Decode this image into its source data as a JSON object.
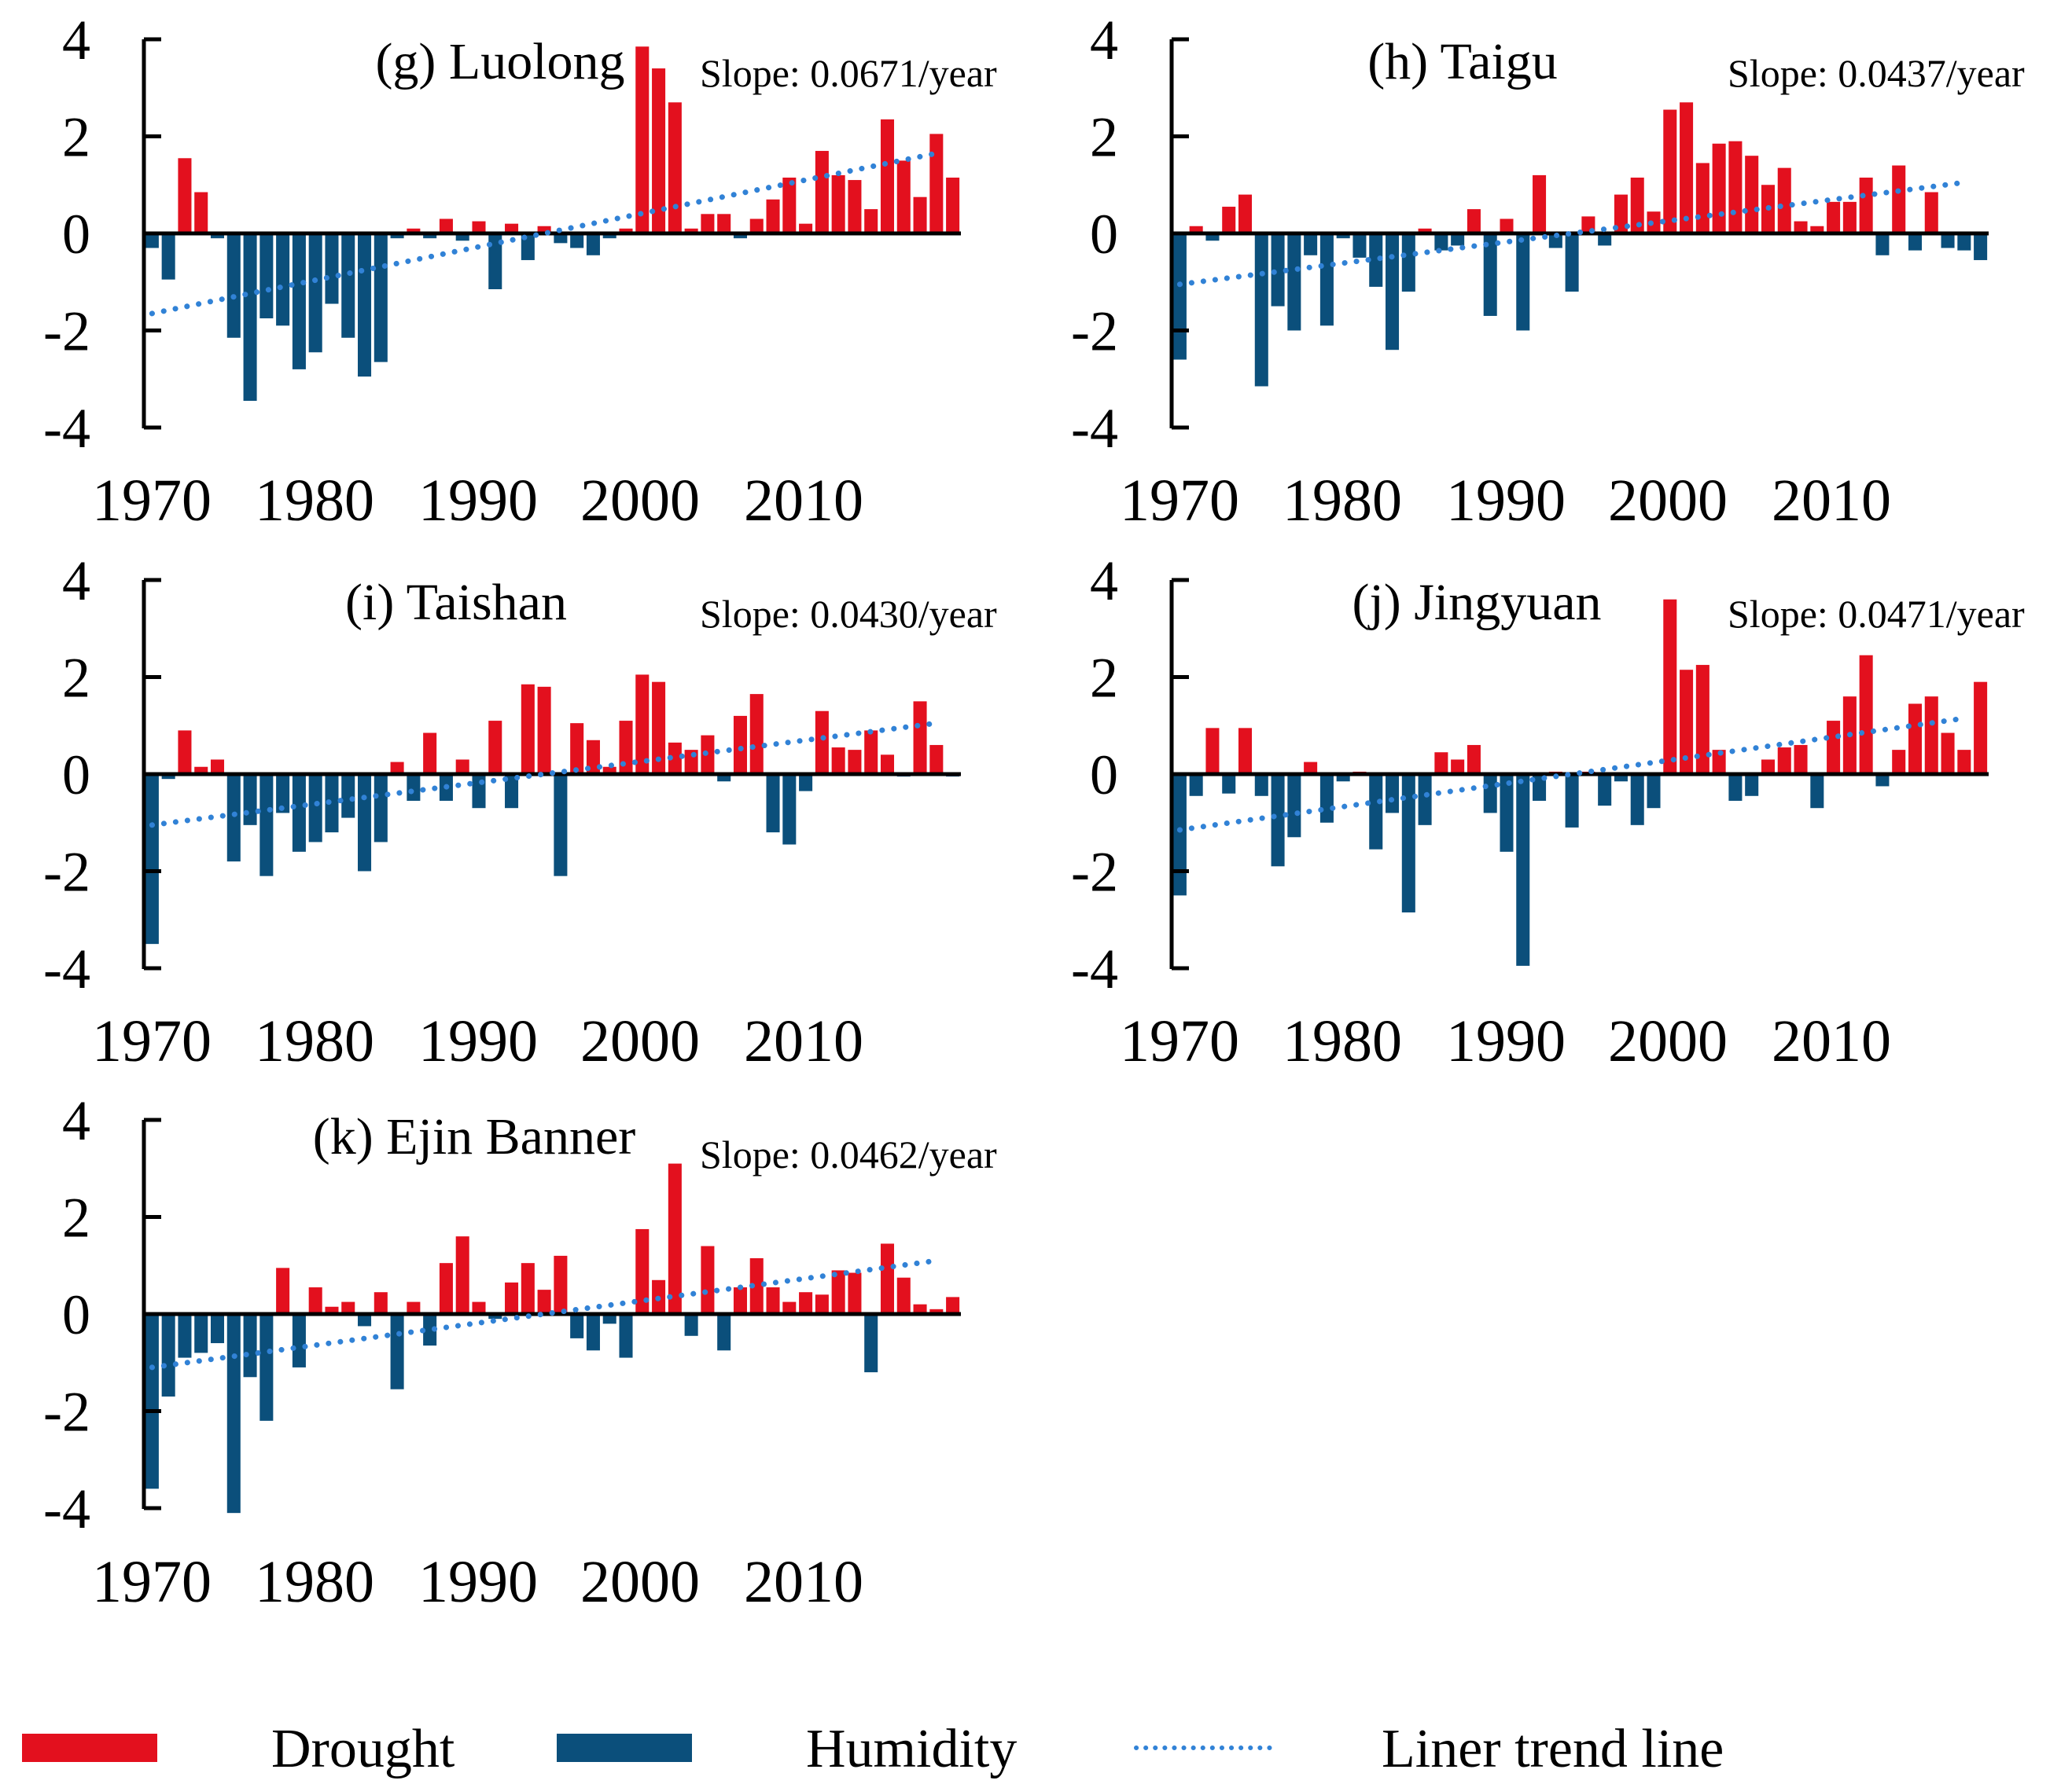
{
  "colors": {
    "drought": "#e3101e",
    "humidity": "#0b4f7b",
    "trend": "#3182d6",
    "axis": "#000000"
  },
  "legend": [
    {
      "key": "drought",
      "label": "Drought",
      "icon": "red-bar"
    },
    {
      "key": "humidity",
      "label": "Humidity",
      "icon": "blue-bar"
    },
    {
      "key": "trend",
      "label": "Liner trend line",
      "icon": "dotted-line"
    }
  ],
  "chart_data": [
    {
      "type": "bar",
      "title": "(g) Luolong",
      "slope_label": "Slope:   0.0671/year",
      "x_start": 1970,
      "xticks": [
        "1970",
        "1980",
        "1990",
        "2000",
        "2010"
      ],
      "yticks": [
        "4",
        "2",
        "0",
        "-2",
        "-4"
      ],
      "ylim": [
        -4,
        4
      ],
      "trend": [
        -1.65,
        1.65
      ],
      "values": [
        -0.3,
        -0.95,
        1.55,
        0.85,
        -0.1,
        -2.15,
        -3.45,
        -1.75,
        -1.9,
        -2.8,
        -2.45,
        -1.45,
        -2.15,
        -2.95,
        -2.65,
        -0.1,
        0.1,
        -0.1,
        0.3,
        -0.15,
        0.25,
        -1.15,
        0.2,
        -0.55,
        0.15,
        -0.2,
        -0.3,
        -0.45,
        -0.1,
        0.1,
        3.85,
        3.4,
        2.7,
        0.1,
        0.4,
        0.4,
        -0.1,
        0.3,
        0.7,
        1.15,
        0.2,
        1.7,
        1.2,
        1.1,
        0.5,
        2.35,
        1.5,
        0.75,
        2.05,
        1.15
      ]
    },
    {
      "type": "bar",
      "title": "(h) Taigu",
      "slope_label": "Slope:   0.0437/year",
      "x_start": 1970,
      "xticks": [
        "1970",
        "1980",
        "1990",
        "2000",
        "2010"
      ],
      "yticks": [
        "4",
        "2",
        "0",
        "-2",
        "-4"
      ],
      "ylim": [
        -4,
        4
      ],
      "trend": [
        -1.05,
        1.05
      ],
      "values": [
        -2.6,
        0.15,
        -0.15,
        0.55,
        0.8,
        -3.15,
        -1.5,
        -2.0,
        -0.45,
        -1.9,
        -0.1,
        -0.5,
        -1.1,
        -2.4,
        -1.2,
        0.1,
        -0.35,
        -0.25,
        0.5,
        -1.7,
        0.3,
        -2.0,
        1.2,
        -0.3,
        -1.2,
        0.35,
        -0.25,
        0.8,
        1.15,
        0.45,
        2.55,
        2.7,
        1.45,
        1.85,
        1.9,
        1.6,
        1.0,
        1.35,
        0.25,
        0.15,
        0.65,
        0.65,
        1.15,
        -0.45,
        1.4,
        -0.35,
        0.85,
        -0.3,
        -0.35,
        -0.55
      ]
    },
    {
      "type": "bar",
      "title": "(i) Taishan",
      "slope_label": "Slope:   0.0430/year",
      "x_start": 1970,
      "xticks": [
        "1970",
        "1980",
        "1990",
        "2000",
        "2010"
      ],
      "yticks": [
        "4",
        "2",
        "0",
        "-2",
        "-4"
      ],
      "ylim": [
        -4,
        4
      ],
      "trend": [
        -1.05,
        1.05
      ],
      "values": [
        -3.5,
        -0.1,
        0.9,
        0.15,
        0.3,
        -1.8,
        -1.05,
        -2.1,
        -0.8,
        -1.6,
        -1.4,
        -1.2,
        -0.9,
        -2.0,
        -1.4,
        0.25,
        -0.55,
        0.85,
        -0.55,
        0.3,
        -0.7,
        1.1,
        -0.7,
        1.85,
        1.8,
        -2.1,
        1.05,
        0.7,
        0.15,
        1.1,
        2.05,
        1.9,
        0.65,
        0.5,
        0.8,
        -0.15,
        1.2,
        1.65,
        -1.2,
        -1.45,
        -0.35,
        1.3,
        0.55,
        0.5,
        0.9,
        0.4,
        -0.05,
        1.5,
        0.6,
        -0.05
      ]
    },
    {
      "type": "bar",
      "title": "(j) Jingyuan",
      "slope_label": "Slope:   0.0471/year",
      "x_start": 1970,
      "xticks": [
        "1970",
        "1980",
        "1990",
        "2000",
        "2010"
      ],
      "yticks": [
        "4",
        "2",
        "0",
        "-2",
        "-4"
      ],
      "ylim": [
        -4,
        4
      ],
      "trend": [
        -1.15,
        1.15
      ],
      "values": [
        -2.5,
        -0.45,
        0.95,
        -0.4,
        0.95,
        -0.45,
        -1.9,
        -1.3,
        0.25,
        -1.0,
        -0.15,
        0.05,
        -1.55,
        -0.8,
        -2.85,
        -1.05,
        0.45,
        0.3,
        0.6,
        -0.8,
        -1.6,
        -3.95,
        -0.55,
        0.05,
        -1.1,
        0.05,
        -0.65,
        -0.15,
        -1.05,
        -0.7,
        3.6,
        2.15,
        2.25,
        0.5,
        -0.55,
        -0.45,
        0.3,
        0.55,
        0.6,
        -0.7,
        1.1,
        1.6,
        2.45,
        -0.25,
        0.5,
        1.45,
        1.6,
        0.85,
        0.5,
        1.9
      ]
    },
    {
      "type": "bar",
      "title": "(k) Ejin Banner",
      "slope_label": "Slope:   0.0462/year",
      "x_start": 1970,
      "xticks": [
        "1970",
        "1980",
        "1990",
        "2000",
        "2010"
      ],
      "yticks": [
        "4",
        "2",
        "0",
        "-2",
        "-4"
      ],
      "ylim": [
        -4,
        4
      ],
      "trend": [
        -1.1,
        1.1
      ],
      "values": [
        -3.6,
        -1.7,
        -0.9,
        -0.8,
        -0.6,
        -4.1,
        -1.3,
        -2.2,
        0.95,
        -1.1,
        0.55,
        0.15,
        0.25,
        -0.25,
        0.45,
        -1.55,
        0.25,
        -0.65,
        1.05,
        1.6,
        0.25,
        -0.1,
        0.65,
        1.05,
        0.5,
        1.2,
        -0.5,
        -0.75,
        -0.2,
        -0.9,
        1.75,
        0.7,
        3.1,
        -0.45,
        1.4,
        -0.75,
        0.55,
        1.15,
        0.55,
        0.25,
        0.45,
        0.4,
        0.9,
        0.85,
        -1.2,
        1.45,
        0.75,
        0.2,
        0.1,
        0.35
      ]
    }
  ]
}
